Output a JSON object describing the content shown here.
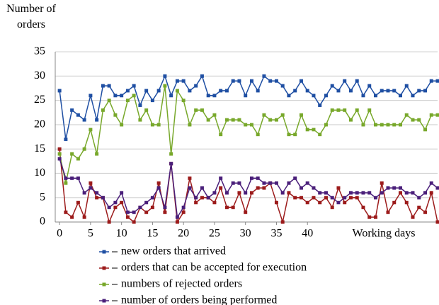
{
  "chart_data": {
    "type": "line",
    "y_label": "Number of orders",
    "x_label": "Working days",
    "x": [
      0,
      1,
      2,
      3,
      4,
      5,
      6,
      7,
      8,
      9,
      10,
      11,
      12,
      13,
      14,
      15,
      16,
      17,
      18,
      19,
      20,
      21,
      22,
      23,
      24,
      25,
      26,
      27,
      28,
      29,
      30,
      31,
      32,
      33,
      34,
      35,
      36,
      37,
      38,
      39,
      40,
      41,
      42,
      43,
      44,
      45,
      46,
      47,
      48,
      49,
      50,
      51,
      52,
      53,
      54,
      55,
      56,
      57,
      58,
      59,
      60,
      61
    ],
    "xlim": [
      -0.7,
      61
    ],
    "xticks": [
      0,
      5,
      10,
      15,
      20,
      25,
      30,
      35,
      40
    ],
    "ylim": [
      0,
      35
    ],
    "yticks": [
      0,
      5,
      10,
      15,
      20,
      25,
      30,
      35
    ],
    "grid": true,
    "series": [
      {
        "name": "new orders that arrived",
        "color": "#1f4fa3",
        "values": [
          27,
          17,
          23,
          22,
          21,
          26,
          21,
          28,
          28,
          26,
          26,
          27,
          28,
          24,
          27,
          25,
          27,
          30,
          26,
          29,
          29,
          27,
          28,
          30,
          26,
          26,
          27,
          27,
          29,
          29,
          26,
          29,
          27,
          30,
          29,
          29,
          28,
          26,
          27,
          29,
          27,
          26,
          24,
          26,
          28,
          27,
          29,
          27,
          29,
          26,
          28,
          26,
          27,
          27,
          27,
          26,
          28,
          26,
          27,
          27,
          29,
          29
        ]
      },
      {
        "name": "orders that can be accepted for execution",
        "color": "#9c1b1b",
        "values": [
          15,
          2,
          1,
          4,
          1,
          8,
          5,
          5,
          0,
          3,
          4,
          1,
          0,
          3,
          2,
          3,
          8,
          2,
          12,
          0,
          2,
          9,
          4,
          5,
          5,
          4,
          7,
          3,
          3,
          6,
          2,
          6,
          7,
          7,
          8,
          4,
          0,
          6,
          5,
          5,
          4,
          5,
          4,
          5,
          3,
          7,
          4,
          5,
          5,
          3,
          1,
          1,
          8,
          2,
          4,
          6,
          4,
          1,
          3,
          2,
          6,
          0
        ]
      },
      {
        "name": "numbers of rejected orders",
        "color": "#78a82b",
        "values": [
          14,
          8,
          14,
          13,
          15,
          19,
          14,
          23,
          25,
          22,
          20,
          25,
          26,
          21,
          23,
          20,
          20,
          28,
          14,
          27,
          25,
          20,
          23,
          23,
          21,
          22,
          18,
          21,
          21,
          21,
          20,
          20,
          18,
          22,
          21,
          21,
          22,
          18,
          18,
          22,
          19,
          19,
          18,
          20,
          23,
          23,
          23,
          21,
          23,
          20,
          23,
          20,
          20,
          20,
          20,
          20,
          22,
          21,
          21,
          19,
          22,
          22
        ]
      },
      {
        "name": "number of orders being performed",
        "color": "#4a1f7a",
        "values": [
          13,
          9,
          9,
          9,
          6,
          7,
          6,
          5,
          3,
          4,
          6,
          2,
          2,
          3,
          4,
          5,
          7,
          3,
          12,
          1,
          3,
          7,
          5,
          7,
          5,
          6,
          9,
          6,
          8,
          8,
          6,
          9,
          9,
          8,
          8,
          8,
          6,
          8,
          9,
          7,
          8,
          7,
          6,
          6,
          5,
          4,
          5,
          6,
          6,
          6,
          6,
          5,
          6,
          7,
          7,
          7,
          6,
          6,
          5,
          6,
          8,
          7
        ]
      }
    ]
  }
}
